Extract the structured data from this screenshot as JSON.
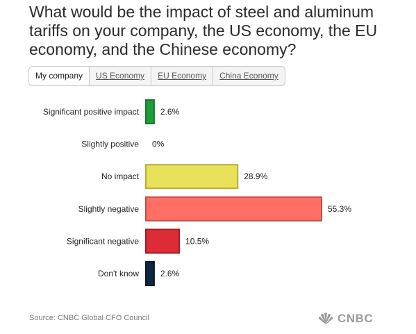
{
  "title": "What would be the impact of steel and aluminum tariffs on your company, the US economy, the EU economy, and the Chinese economy?",
  "tabs": [
    {
      "label": "My company",
      "active": true
    },
    {
      "label": "US Economy",
      "active": false
    },
    {
      "label": "EU Economy",
      "active": false
    },
    {
      "label": "China Economy",
      "active": false
    }
  ],
  "source": "Source: CNBC Global CFO Council",
  "logo": {
    "text": "CNBC",
    "icon": "peacock-icon"
  },
  "chart_data": {
    "type": "bar",
    "orientation": "horizontal",
    "categories": [
      "Significant positive impact",
      "Slightly positive",
      "No impact",
      "Slightly negative",
      "Significant negative",
      "Don't know"
    ],
    "values": [
      2.6,
      0,
      28.9,
      55.3,
      10.5,
      2.6
    ],
    "value_labels": [
      "2.6%",
      "0%",
      "28.9%",
      "55.3%",
      "10.5%",
      "2.6%"
    ],
    "colors": [
      "#1e9e3a",
      "#ffffff",
      "#e8e15a",
      "#ff6f63",
      "#dd2c35",
      "#0d2742"
    ],
    "border_colors": [
      "#127a28",
      "#ffffff",
      "#b4ad3b",
      "#c94a42",
      "#a71d25",
      "#061726"
    ],
    "xlim": [
      0,
      55.3
    ],
    "grid": false,
    "legend": "none"
  }
}
